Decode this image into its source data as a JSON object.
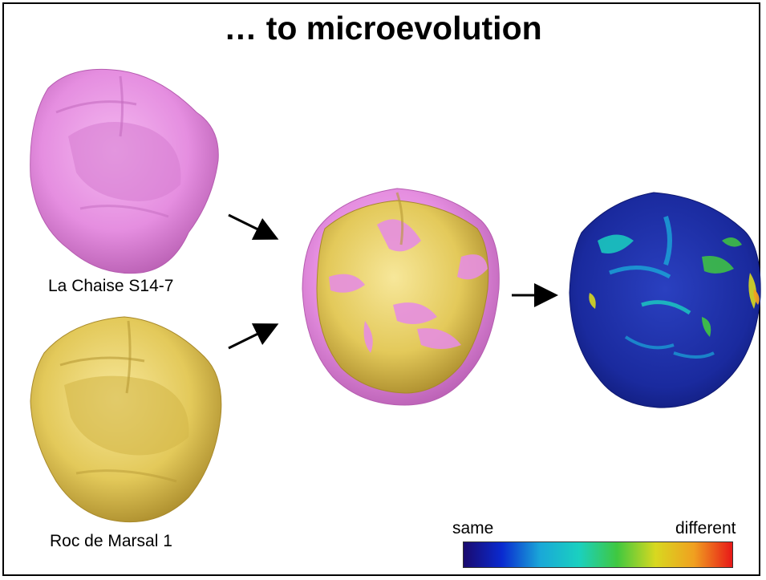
{
  "slide": {
    "title": "… to microevolution"
  },
  "specimens": {
    "top": {
      "label": "La Chaise S14-7",
      "color": "#e58ee0"
    },
    "bottom": {
      "label": "Roc de Marsal 1",
      "color": "#e3c95a"
    }
  },
  "overlay": {
    "pink_color": "#e58ee0",
    "gold_color": "#e3c95a"
  },
  "heatmap": {
    "base_color": "#1a2a9e"
  },
  "legend": {
    "low_label": "same",
    "high_label": "different",
    "gradient_colors": [
      "#1a0a6e",
      "#0a2ad0",
      "#1aa8d8",
      "#1ad0c0",
      "#40c840",
      "#d8d820",
      "#f0a020",
      "#e81818"
    ]
  }
}
